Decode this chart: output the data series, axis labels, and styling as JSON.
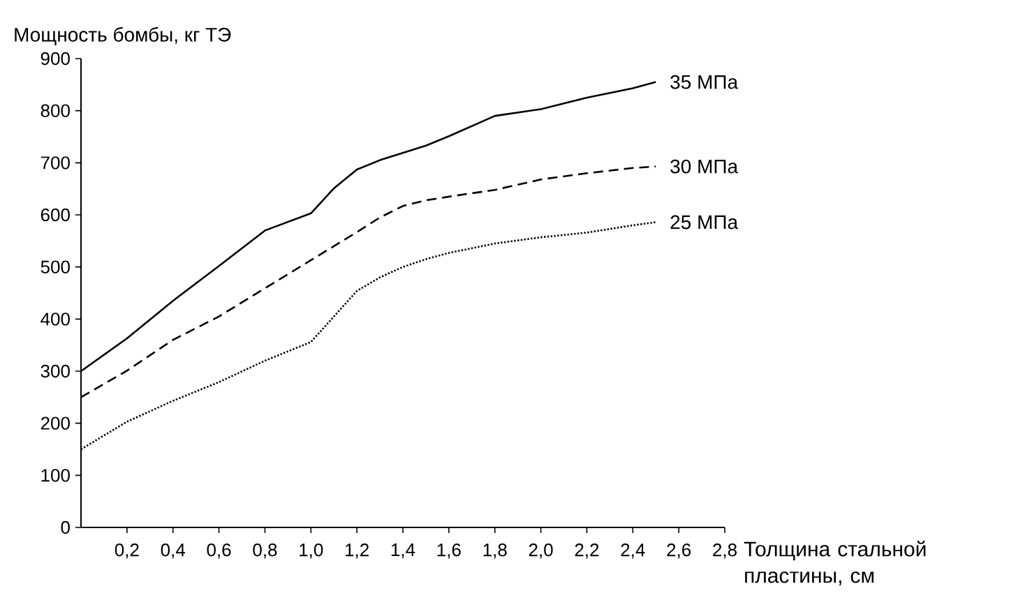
{
  "chart_data": {
    "type": "line",
    "xlabel": "Толщина стальной пластины, см",
    "ylabel": "Мощность бомбы, кг ТЭ",
    "xlim": [
      0,
      2.8
    ],
    "ylim": [
      0,
      900
    ],
    "xticks": [
      {
        "value": 0.2,
        "label": "0,2"
      },
      {
        "value": 0.4,
        "label": "0,4"
      },
      {
        "value": 0.6,
        "label": "0,6"
      },
      {
        "value": 0.8,
        "label": "0,8"
      },
      {
        "value": 1.0,
        "label": "1,0"
      },
      {
        "value": 1.2,
        "label": "1,2"
      },
      {
        "value": 1.4,
        "label": "1,4"
      },
      {
        "value": 1.6,
        "label": "1,6"
      },
      {
        "value": 1.8,
        "label": "1,8"
      },
      {
        "value": 2.0,
        "label": "2,0"
      },
      {
        "value": 2.2,
        "label": "2,2"
      },
      {
        "value": 2.4,
        "label": "2,4"
      },
      {
        "value": 2.6,
        "label": "2,6"
      },
      {
        "value": 2.8,
        "label": "2,8"
      }
    ],
    "yticks": [
      0,
      100,
      200,
      300,
      400,
      500,
      600,
      700,
      800,
      900
    ],
    "x": [
      0,
      0.2,
      0.4,
      0.6,
      0.8,
      1.0,
      1.1,
      1.2,
      1.3,
      1.4,
      1.5,
      1.6,
      1.8,
      2.0,
      2.2,
      2.4,
      2.5
    ],
    "series": [
      {
        "name": "35 МПа",
        "color": "#000000",
        "line_style": "solid",
        "values": [
          300,
          363,
          435,
          502,
          570,
          603,
          651,
          687,
          705,
          719,
          733,
          751,
          790,
          803,
          825,
          843,
          855
        ]
      },
      {
        "name": "30 МПа",
        "color": "#000000",
        "line_style": "dashed",
        "values": [
          250,
          301,
          360,
          405,
          459,
          513,
          540,
          567,
          595,
          617,
          628,
          635,
          648,
          668,
          680,
          690,
          693
        ]
      },
      {
        "name": "25 МПа",
        "color": "#000000",
        "line_style": "dotted",
        "values": [
          150,
          203,
          243,
          279,
          320,
          356,
          405,
          454,
          480,
          500,
          515,
          527,
          545,
          557,
          566,
          580,
          586
        ]
      }
    ],
    "grid": false
  }
}
